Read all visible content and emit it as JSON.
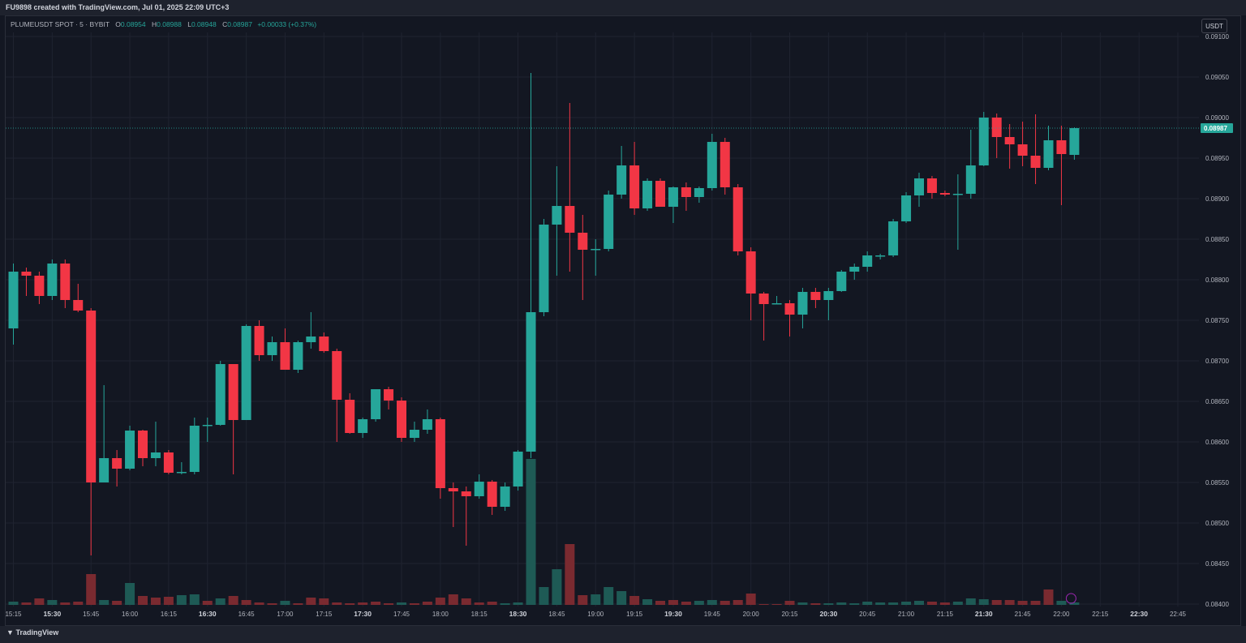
{
  "header": {
    "credit": "FU9898 created with TradingView.com, Jul 01, 2025 22:09 UTC+3"
  },
  "legend": {
    "symbol": "PLUMEUSDT SPOT · 5 · BYBIT",
    "o_label": "O",
    "o": "0.08954",
    "h_label": "H",
    "h": "0.08988",
    "l_label": "L",
    "l": "0.08948",
    "c_label": "C",
    "c": "0.08987",
    "change": "+0.00033 (+0.37%)"
  },
  "currency_button": "USDT",
  "footer": {
    "logo": "TradingView"
  },
  "colors": {
    "up": "#26a69a",
    "down": "#f23645",
    "up_vol": "#1e5a55",
    "down_vol": "#7a2a30",
    "bg": "#131722",
    "grid": "#1f2330"
  },
  "chart_data": {
    "type": "candlestick",
    "y_ticks": [
      "0.09100",
      "0.09050",
      "0.09000",
      "0.08950",
      "0.08900",
      "0.08850",
      "0.08800",
      "0.08750",
      "0.08700",
      "0.08650",
      "0.08600",
      "0.08550",
      "0.08500",
      "0.08450",
      "0.08400"
    ],
    "ylim": [
      0.084,
      0.091
    ],
    "x_ticks": [
      "15:15",
      "15:30",
      "15:45",
      "16:00",
      "16:15",
      "16:30",
      "16:45",
      "17:00",
      "17:15",
      "17:30",
      "17:45",
      "18:00",
      "18:15",
      "18:30",
      "18:45",
      "19:00",
      "19:15",
      "19:30",
      "19:45",
      "20:00",
      "20:15",
      "20:30",
      "20:45",
      "21:00",
      "21:15",
      "21:30",
      "21:45",
      "22:00",
      "22:15",
      "22:30",
      "22:45"
    ],
    "last_price": "0.08987",
    "ohlc": [
      [
        0.0874,
        0.0882,
        0.0872,
        0.0881
      ],
      [
        0.0881,
        0.08815,
        0.0878,
        0.08805
      ],
      [
        0.08805,
        0.0881,
        0.0877,
        0.0878
      ],
      [
        0.0878,
        0.08825,
        0.08775,
        0.0882
      ],
      [
        0.0882,
        0.08825,
        0.08765,
        0.08775
      ],
      [
        0.08775,
        0.08795,
        0.0876,
        0.08762
      ],
      [
        0.08762,
        0.08765,
        0.0846,
        0.0855
      ],
      [
        0.0855,
        0.0867,
        0.0855,
        0.0858
      ],
      [
        0.0858,
        0.0859,
        0.08545,
        0.08567
      ],
      [
        0.08567,
        0.0862,
        0.08565,
        0.08614
      ],
      [
        0.08614,
        0.08615,
        0.0857,
        0.0858
      ],
      [
        0.0858,
        0.08625,
        0.0857,
        0.08587
      ],
      [
        0.08587,
        0.0859,
        0.0856,
        0.08562
      ],
      [
        0.08562,
        0.08575,
        0.0856,
        0.08563
      ],
      [
        0.08563,
        0.0863,
        0.0856,
        0.0862
      ],
      [
        0.0862,
        0.0863,
        0.086,
        0.08621
      ],
      [
        0.08621,
        0.087,
        0.0862,
        0.08696
      ],
      [
        0.08696,
        0.08696,
        0.0856,
        0.08627
      ],
      [
        0.08627,
        0.08745,
        0.08627,
        0.08743
      ],
      [
        0.08743,
        0.0875,
        0.087,
        0.08707
      ],
      [
        0.08707,
        0.0873,
        0.087,
        0.08723
      ],
      [
        0.08723,
        0.0874,
        0.0869,
        0.08689
      ],
      [
        0.08689,
        0.08725,
        0.08685,
        0.08723
      ],
      [
        0.08723,
        0.0876,
        0.08715,
        0.0873
      ],
      [
        0.0873,
        0.08735,
        0.0871,
        0.08712
      ],
      [
        0.08712,
        0.08715,
        0.086,
        0.08652
      ],
      [
        0.08652,
        0.0866,
        0.0861,
        0.08611
      ],
      [
        0.08611,
        0.0863,
        0.08605,
        0.08628
      ],
      [
        0.08628,
        0.08665,
        0.08625,
        0.08665
      ],
      [
        0.08665,
        0.08668,
        0.0864,
        0.08651
      ],
      [
        0.08651,
        0.08655,
        0.086,
        0.08605
      ],
      [
        0.08605,
        0.08625,
        0.086,
        0.08615
      ],
      [
        0.08615,
        0.0864,
        0.0861,
        0.08628
      ],
      [
        0.08628,
        0.0863,
        0.0853,
        0.08543
      ],
      [
        0.08543,
        0.0855,
        0.08495,
        0.08539
      ],
      [
        0.08539,
        0.08545,
        0.08472,
        0.08533
      ],
      [
        0.08533,
        0.0856,
        0.0853,
        0.08551
      ],
      [
        0.08551,
        0.08553,
        0.0851,
        0.0852
      ],
      [
        0.0852,
        0.0855,
        0.08515,
        0.08545
      ],
      [
        0.08545,
        0.0859,
        0.0854,
        0.08588
      ],
      [
        0.08588,
        0.09055,
        0.0858,
        0.0876
      ],
      [
        0.0876,
        0.08875,
        0.08755,
        0.08868
      ],
      [
        0.08868,
        0.0894,
        0.08805,
        0.08891
      ],
      [
        0.08891,
        0.09018,
        0.0881,
        0.08858
      ],
      [
        0.08858,
        0.0888,
        0.08775,
        0.08837
      ],
      [
        0.08837,
        0.0885,
        0.08805,
        0.08838
      ],
      [
        0.08838,
        0.0891,
        0.08835,
        0.08905
      ],
      [
        0.08905,
        0.08965,
        0.089,
        0.08941
      ],
      [
        0.08941,
        0.0897,
        0.0888,
        0.08888
      ],
      [
        0.08888,
        0.08925,
        0.08885,
        0.08922
      ],
      [
        0.08922,
        0.08925,
        0.0889,
        0.0889
      ],
      [
        0.0889,
        0.08915,
        0.0887,
        0.08914
      ],
      [
        0.08914,
        0.0892,
        0.08885,
        0.08902
      ],
      [
        0.08902,
        0.08915,
        0.08895,
        0.08913
      ],
      [
        0.08913,
        0.0898,
        0.0891,
        0.0897
      ],
      [
        0.0897,
        0.08975,
        0.08905,
        0.08914
      ],
      [
        0.08914,
        0.08918,
        0.0883,
        0.08835
      ],
      [
        0.08835,
        0.0884,
        0.0875,
        0.08783
      ],
      [
        0.08783,
        0.08785,
        0.08725,
        0.0877
      ],
      [
        0.0877,
        0.0878,
        0.0877,
        0.08771
      ],
      [
        0.08771,
        0.08775,
        0.0873,
        0.08757
      ],
      [
        0.08757,
        0.0879,
        0.0874,
        0.08785
      ],
      [
        0.08785,
        0.0879,
        0.08765,
        0.08775
      ],
      [
        0.08775,
        0.0879,
        0.0875,
        0.08786
      ],
      [
        0.08786,
        0.08812,
        0.08785,
        0.0881
      ],
      [
        0.0881,
        0.0882,
        0.088,
        0.08816
      ],
      [
        0.08816,
        0.08835,
        0.0881,
        0.0883
      ],
      [
        0.0883,
        0.08832,
        0.08825,
        0.0883
      ],
      [
        0.0883,
        0.08875,
        0.08828,
        0.08872
      ],
      [
        0.08872,
        0.08908,
        0.0887,
        0.08904
      ],
      [
        0.08904,
        0.08932,
        0.0889,
        0.08925
      ],
      [
        0.08925,
        0.08928,
        0.089,
        0.08907
      ],
      [
        0.08907,
        0.0891,
        0.08903,
        0.08905
      ],
      [
        0.08905,
        0.0893,
        0.08837,
        0.08906
      ],
      [
        0.08906,
        0.08985,
        0.089,
        0.08941
      ],
      [
        0.08941,
        0.09007,
        0.0894,
        0.09
      ],
      [
        0.09,
        0.09005,
        0.0895,
        0.08976
      ],
      [
        0.08976,
        0.08992,
        0.08937,
        0.08967
      ],
      [
        0.08967,
        0.08995,
        0.0894,
        0.08953
      ],
      [
        0.08953,
        0.09004,
        0.08918,
        0.08938
      ],
      [
        0.08938,
        0.0899,
        0.08935,
        0.08972
      ],
      [
        0.08972,
        0.0899,
        0.08892,
        0.08955
      ],
      [
        0.08954,
        0.08988,
        0.08948,
        0.08987
      ]
    ],
    "volume": [
      [
        4,
        1
      ],
      [
        3,
        0
      ],
      [
        8,
        0
      ],
      [
        6,
        1
      ],
      [
        3,
        0
      ],
      [
        4,
        0
      ],
      [
        38,
        0
      ],
      [
        6,
        1
      ],
      [
        5,
        0
      ],
      [
        27,
        1
      ],
      [
        11,
        0
      ],
      [
        9,
        0
      ],
      [
        10,
        0
      ],
      [
        12,
        1
      ],
      [
        13,
        1
      ],
      [
        5,
        0
      ],
      [
        8,
        1
      ],
      [
        11,
        0
      ],
      [
        6,
        0
      ],
      [
        3,
        0
      ],
      [
        2,
        0
      ],
      [
        5,
        1
      ],
      [
        2,
        0
      ],
      [
        9,
        0
      ],
      [
        8,
        0
      ],
      [
        3,
        0
      ],
      [
        2,
        0
      ],
      [
        3,
        0
      ],
      [
        4,
        0
      ],
      [
        2,
        0
      ],
      [
        3,
        1
      ],
      [
        2,
        0
      ],
      [
        4,
        0
      ],
      [
        9,
        0
      ],
      [
        13,
        0
      ],
      [
        8,
        0
      ],
      [
        3,
        0
      ],
      [
        4,
        0
      ],
      [
        2,
        1
      ],
      [
        3,
        1
      ],
      [
        180,
        1
      ],
      [
        22,
        1
      ],
      [
        44,
        1
      ],
      [
        75,
        0
      ],
      [
        12,
        0
      ],
      [
        13,
        1
      ],
      [
        22,
        1
      ],
      [
        17,
        1
      ],
      [
        11,
        0
      ],
      [
        7,
        1
      ],
      [
        5,
        0
      ],
      [
        6,
        0
      ],
      [
        4,
        0
      ],
      [
        5,
        1
      ],
      [
        6,
        1
      ],
      [
        5,
        0
      ],
      [
        6,
        0
      ],
      [
        14,
        0
      ],
      [
        1,
        0
      ],
      [
        1,
        0
      ],
      [
        5,
        0
      ],
      [
        3,
        1
      ],
      [
        2,
        0
      ],
      [
        2,
        1
      ],
      [
        3,
        1
      ],
      [
        2,
        1
      ],
      [
        4,
        1
      ],
      [
        3,
        1
      ],
      [
        3,
        1
      ],
      [
        4,
        1
      ],
      [
        5,
        1
      ],
      [
        4,
        0
      ],
      [
        3,
        0
      ],
      [
        4,
        1
      ],
      [
        8,
        1
      ],
      [
        7,
        1
      ],
      [
        6,
        0
      ],
      [
        6,
        0
      ],
      [
        5,
        0
      ],
      [
        5,
        0
      ],
      [
        19,
        0
      ],
      [
        5,
        1
      ],
      [
        3,
        1
      ]
    ],
    "grid": true
  }
}
